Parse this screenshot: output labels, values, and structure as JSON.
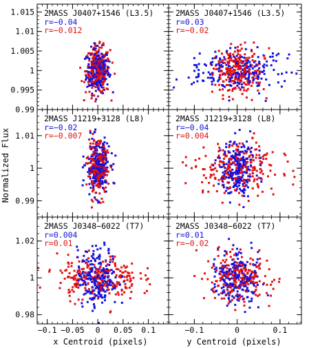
{
  "figure": {
    "ylabel": "Normalized Flux",
    "xlabels": [
      "x Centroid (pixels)",
      "y Centroid (pixels)"
    ],
    "series_colors": {
      "blue": "#1010e0",
      "red": "#e01010"
    }
  },
  "chart_data": [
    {
      "type": "scatter",
      "row": 0,
      "col": 0,
      "title": "2MASS J0407+1546 (L3.5)",
      "xlim": [
        -0.12,
        0.14
      ],
      "ylim": [
        0.99,
        1.017
      ],
      "xticks": [
        -0.1,
        -0.05,
        0,
        0.05,
        0.1
      ],
      "yticks": [
        0.99,
        0.995,
        1,
        1.005,
        1.01,
        1.015
      ],
      "yticklabels": [
        "0.99",
        "0.995",
        "1",
        "1.005",
        "1.01",
        "1.015"
      ],
      "xticklabels": [],
      "series": [
        {
          "color": "blue",
          "r_label": "r=−0.04",
          "x_center": 0.0,
          "x_spread": 0.011,
          "y_center": 1.0,
          "y_spread": 0.0028,
          "count": 220
        },
        {
          "color": "red",
          "r_label": "r=−0.012",
          "x_center": 0.0,
          "x_spread": 0.012,
          "y_center": 1.0,
          "y_spread": 0.003,
          "count": 240
        }
      ]
    },
    {
      "type": "scatter",
      "row": 0,
      "col": 1,
      "title": "2MASS J0407+1546 (L3.5)",
      "xlim": [
        -0.16,
        0.15
      ],
      "ylim": [
        0.99,
        1.017
      ],
      "xticks": [
        -0.1,
        0,
        0.1
      ],
      "yticks": [
        0.99,
        0.995,
        1,
        1.005,
        1.01,
        1.015
      ],
      "yticklabels": [],
      "xticklabels": [],
      "series": [
        {
          "color": "blue",
          "r_label": "r=0.03",
          "x_center": 0.0,
          "x_spread": 0.05,
          "y_center": 1.0,
          "y_spread": 0.0028,
          "count": 220
        },
        {
          "color": "red",
          "r_label": "r=−0.02",
          "x_center": 0.0,
          "x_spread": 0.03,
          "y_center": 1.0,
          "y_spread": 0.003,
          "count": 240
        }
      ]
    },
    {
      "type": "scatter",
      "row": 1,
      "col": 0,
      "title": "2MASS J1219+3128 (L8)",
      "xlim": [
        -0.12,
        0.14
      ],
      "ylim": [
        0.985,
        1.018
      ],
      "xticks": [
        -0.1,
        -0.05,
        0,
        0.05,
        0.1
      ],
      "yticks": [
        0.99,
        1,
        1.01
      ],
      "yticklabels": [
        "0.99",
        "1",
        "1.01"
      ],
      "xticklabels": [],
      "series": [
        {
          "color": "blue",
          "r_label": "r=−0.02",
          "x_center": 0.0,
          "x_spread": 0.012,
          "y_center": 1.0,
          "y_spread": 0.004,
          "count": 220
        },
        {
          "color": "red",
          "r_label": "r=−0.007",
          "x_center": 0.0,
          "x_spread": 0.01,
          "y_center": 1.0,
          "y_spread": 0.004,
          "count": 240
        }
      ]
    },
    {
      "type": "scatter",
      "row": 1,
      "col": 1,
      "title": "2MASS J1219+3128 (L8)",
      "xlim": [
        -0.16,
        0.15
      ],
      "ylim": [
        0.985,
        1.018
      ],
      "xticks": [
        -0.1,
        0,
        0.1
      ],
      "yticks": [
        0.99,
        1,
        1.01
      ],
      "yticklabels": [],
      "xticklabels": [],
      "series": [
        {
          "color": "blue",
          "r_label": "r=−0.04",
          "x_center": 0.0,
          "x_spread": 0.022,
          "y_center": 1.0,
          "y_spread": 0.0045,
          "count": 220
        },
        {
          "color": "red",
          "r_label": "r=0.004",
          "x_center": 0.0,
          "x_spread": 0.045,
          "y_center": 1.0,
          "y_spread": 0.004,
          "count": 240
        }
      ]
    },
    {
      "type": "scatter",
      "row": 2,
      "col": 0,
      "title": "2MASS J0348−6022 (T7)",
      "xlim": [
        -0.12,
        0.14
      ],
      "ylim": [
        0.975,
        1.033
      ],
      "xticks": [
        -0.1,
        -0.05,
        0,
        0.05,
        0.1
      ],
      "yticks": [
        0.98,
        1,
        1.02
      ],
      "yticklabels": [
        "0.98",
        "1",
        "1.02"
      ],
      "xticklabels": [
        "−0.1",
        "−0.05",
        "0",
        "0.05",
        "0.1"
      ],
      "series": [
        {
          "color": "blue",
          "r_label": "r=0.004",
          "x_center": 0.0,
          "x_spread": 0.02,
          "y_center": 1.0,
          "y_spread": 0.008,
          "count": 220
        },
        {
          "color": "red",
          "r_label": "r=0.01",
          "x_center": 0.0,
          "x_spread": 0.04,
          "y_center": 1.0,
          "y_spread": 0.006,
          "count": 240
        }
      ]
    },
    {
      "type": "scatter",
      "row": 2,
      "col": 1,
      "title": "2MASS J0348−6022 (T7)",
      "xlim": [
        -0.16,
        0.15
      ],
      "ylim": [
        0.975,
        1.033
      ],
      "xticks": [
        -0.1,
        0,
        0.1
      ],
      "yticks": [
        0.98,
        1,
        1.02
      ],
      "yticklabels": [],
      "xticklabels": [
        "−0.1",
        "0",
        "0.1"
      ],
      "series": [
        {
          "color": "blue",
          "r_label": "r=0.01",
          "x_center": 0.0,
          "x_spread": 0.025,
          "y_center": 1.0,
          "y_spread": 0.007,
          "count": 220
        },
        {
          "color": "red",
          "r_label": "r=−0.02",
          "x_center": 0.0,
          "x_spread": 0.035,
          "y_center": 1.0,
          "y_spread": 0.006,
          "count": 240
        }
      ]
    }
  ]
}
